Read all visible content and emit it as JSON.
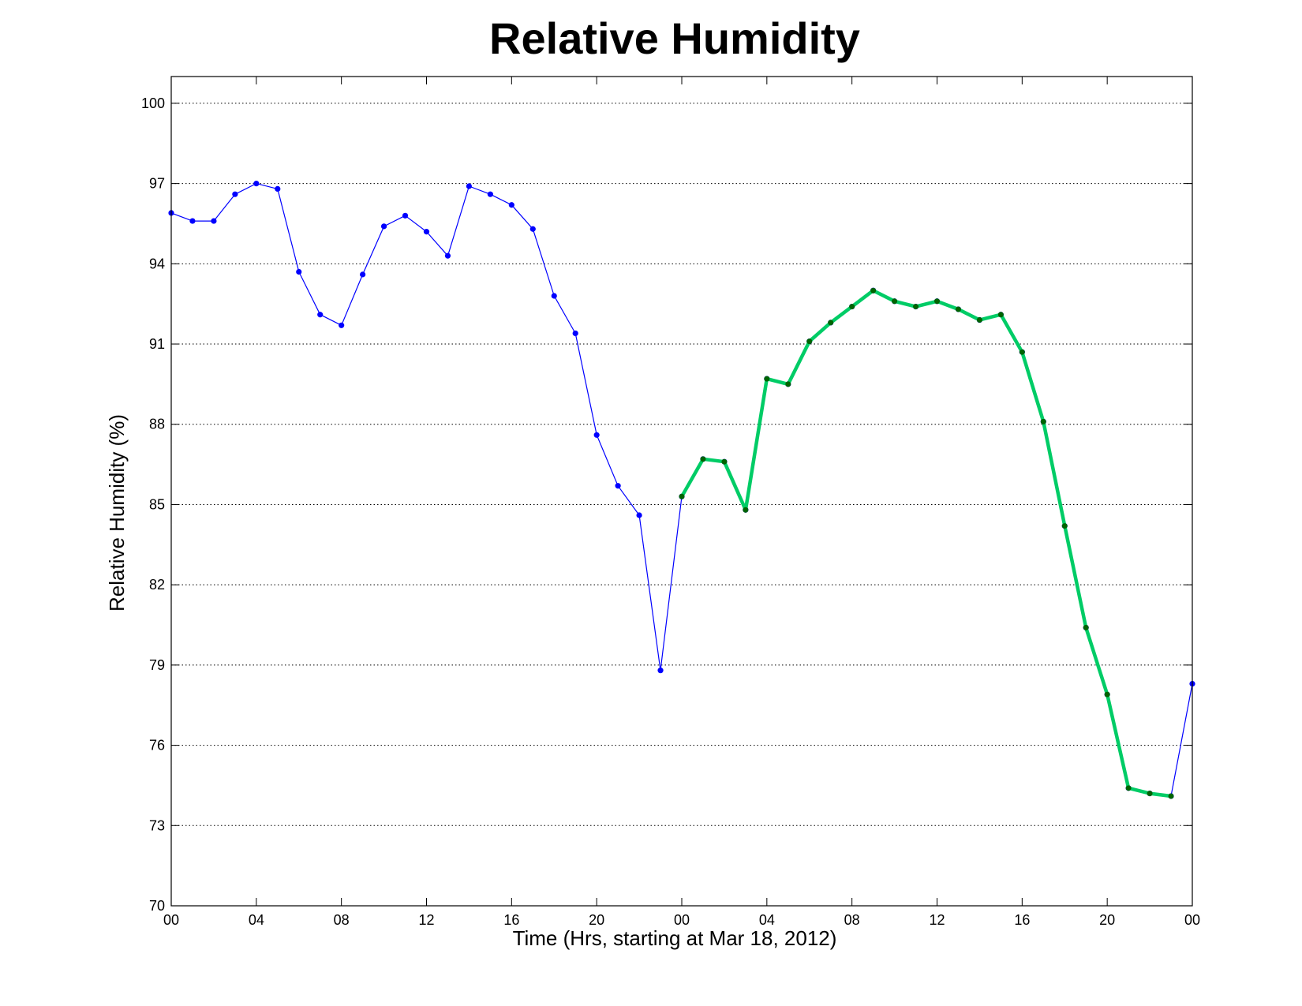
{
  "chart_data": {
    "type": "line",
    "title": "Relative Humidity",
    "xlabel": "Time (Hrs, starting at Mar 18, 2012)",
    "ylabel": "Relative Humidity (%)",
    "xlim": [
      0,
      48
    ],
    "ylim": [
      70,
      101
    ],
    "grid": "y-dotted",
    "x_ticks": [
      0,
      4,
      8,
      12,
      16,
      20,
      24,
      28,
      32,
      36,
      40,
      44,
      48
    ],
    "x_tick_labels": [
      "00",
      "04",
      "08",
      "12",
      "16",
      "20",
      "00",
      "04",
      "08",
      "12",
      "16",
      "20",
      "00"
    ],
    "y_ticks": [
      70,
      73,
      76,
      79,
      82,
      85,
      88,
      91,
      94,
      97,
      100
    ],
    "y_tick_labels": [
      "70",
      "73",
      "76",
      "79",
      "82",
      "85",
      "88",
      "91",
      "94",
      "97",
      "100"
    ],
    "series": [
      {
        "color": "#0000ff",
        "style": "thin-line-dots",
        "x": [
          0,
          1,
          2,
          3,
          4,
          5,
          6,
          7,
          8,
          9,
          10,
          11,
          12,
          13,
          14,
          15,
          16,
          17,
          18,
          19,
          20,
          21,
          22,
          23,
          24,
          25,
          26,
          27,
          28,
          29,
          30,
          31,
          32,
          33,
          34,
          35,
          36,
          37,
          38,
          39,
          40,
          41,
          42,
          43,
          44,
          45,
          46,
          47,
          48
        ],
        "values": [
          95.9,
          95.6,
          95.6,
          96.6,
          97.0,
          96.8,
          93.7,
          92.1,
          91.7,
          93.6,
          95.4,
          95.8,
          95.2,
          94.3,
          96.9,
          96.6,
          96.2,
          95.3,
          92.8,
          91.4,
          87.6,
          85.7,
          84.6,
          78.8,
          85.3,
          86.7,
          86.6,
          84.8,
          89.7,
          89.5,
          91.1,
          91.8,
          92.4,
          93.0,
          92.6,
          92.4,
          92.6,
          92.3,
          91.9,
          92.1,
          90.7,
          88.1,
          84.2,
          80.4,
          77.9,
          74.4,
          74.2,
          74.1,
          78.3
        ]
      },
      {
        "color": "#00cc66",
        "marker_color": "#006400",
        "style": "thick-line-dots",
        "x": [
          24,
          25,
          26,
          27,
          28,
          29,
          30,
          31,
          32,
          33,
          34,
          35,
          36,
          37,
          38,
          39,
          40,
          41,
          42,
          43,
          44,
          45,
          46,
          47
        ],
        "values": [
          85.3,
          86.7,
          86.6,
          84.8,
          89.7,
          89.5,
          91.1,
          91.8,
          92.4,
          93.0,
          92.6,
          92.4,
          92.6,
          92.3,
          91.9,
          92.1,
          90.7,
          88.1,
          84.2,
          80.4,
          77.9,
          74.4,
          74.2,
          74.1
        ]
      }
    ]
  }
}
